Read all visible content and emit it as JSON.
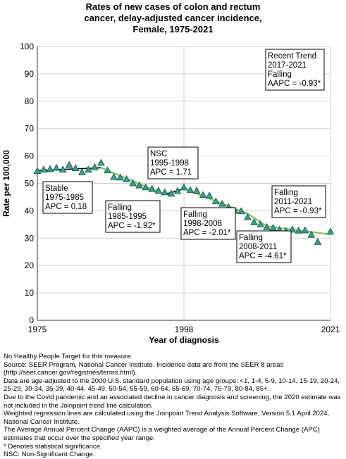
{
  "title_lines": [
    "Rates of new cases of colon and rectum",
    "cancer, delay-adjusted cancer incidence,",
    "Female,  1975-2021"
  ],
  "chart_data": {
    "type": "scatter",
    "xlabel": "Year of diagnosis",
    "ylabel": "Rate per 100,000",
    "xlim": [
      1975,
      2021
    ],
    "ylim": [
      0,
      100
    ],
    "x_ticks": [
      1975,
      1998,
      2021
    ],
    "y_ticks": [
      0,
      10,
      20,
      30,
      40,
      50,
      60,
      70,
      80,
      90,
      100
    ],
    "grid": true,
    "colors": {
      "points": "#3a9e8c",
      "points_edge": "#1a5e52",
      "trend_nsc": "#000000",
      "trend_falling": "#7dc75a"
    },
    "series": [
      {
        "type": "scatter",
        "x": [
          1975,
          1976,
          1977,
          1978,
          1979,
          1980,
          1981,
          1982,
          1983,
          1984,
          1985,
          1986,
          1987,
          1988,
          1989,
          1990,
          1991,
          1992,
          1993,
          1994,
          1995,
          1996,
          1997,
          1998,
          1999,
          2000,
          2001,
          2002,
          2003,
          2004,
          2005,
          2006,
          2007,
          2008,
          2009,
          2010,
          2011,
          2012,
          2013,
          2014,
          2015,
          2016,
          2017,
          2018,
          2019,
          2021
        ],
        "y": [
          54.5,
          55.0,
          55.2,
          55.6,
          55.0,
          56.7,
          55.5,
          54.0,
          55.0,
          55.9,
          57.5,
          54.7,
          52.3,
          52.1,
          51.5,
          50.0,
          49.2,
          48.5,
          47.9,
          47.3,
          46.7,
          46.2,
          47.2,
          48.5,
          47.5,
          47.3,
          45.7,
          45.5,
          43.4,
          42.5,
          41.3,
          40.0,
          39.8,
          37.6,
          35.8,
          35.0,
          34.0,
          33.7,
          33.0,
          32.5,
          33.1,
          32.7,
          32.8,
          31.2,
          28.6,
          32.3
        ]
      },
      {
        "type": "line",
        "segments": [
          {
            "x": [
              1975,
              1985
            ],
            "y": [
              54.7,
              55.7
            ],
            "trend": "nsc"
          },
          {
            "x": [
              1985,
              1995
            ],
            "y": [
              55.7,
              46.0
            ],
            "trend": "falling"
          },
          {
            "x": [
              1995,
              1998
            ],
            "y": [
              46.0,
              48.0
            ],
            "trend": "nsc"
          },
          {
            "x": [
              1998,
              2008
            ],
            "y": [
              48.0,
              39.0
            ],
            "trend": "falling"
          },
          {
            "x": [
              2008,
              2011
            ],
            "y": [
              39.0,
              34.3
            ],
            "trend": "falling"
          },
          {
            "x": [
              2011,
              2021
            ],
            "y": [
              34.3,
              31.4
            ],
            "trend": "falling"
          }
        ]
      }
    ],
    "annotations": [
      {
        "lines": [
          "Recent Trend",
          "2017-2021",
          "Falling",
          "AAPC = -0.93*"
        ]
      },
      {
        "lines": [
          "NSC",
          "1995-1998",
          "APC =  1.71"
        ]
      },
      {
        "lines": [
          "Stable",
          "1975-1985",
          "APC =  0.18"
        ]
      },
      {
        "lines": [
          "Falling",
          "1985-1995",
          "APC = -1.92*"
        ]
      },
      {
        "lines": [
          "Falling",
          "1998-2008",
          "APC = -2.01*"
        ]
      },
      {
        "lines": [
          "Falling",
          "2011-2021",
          "APC = -0.93*"
        ]
      },
      {
        "lines": [
          "Falling",
          "2008-2011",
          "APC = -4.61*"
        ]
      }
    ]
  },
  "notes": [
    "No Healthy People Target for this measure.",
    "Source: SEER Program, National Cancer Institute. Incidence data are from the SEER 8 areas (http://seer.cancer.gov/registries/terms.html).",
    "Data are age-adjusted to the 2000 U.S. standard population using age groups: <1, 1-4, 5-9, 10-14, 15-19, 20-24, 25-29, 30-34, 35-39, 40-44, 45-49, 50-54, 55-59, 60-64, 65-69, 70-74, 75-79, 80-84, 85+.",
    "Due to the Covid pandemic and an associated decline in cancer diagnosis and screening, the 2020 estimate was not included in the Joinpoint trend line calculation.",
    "Weighted regression lines are calculated using the Joinpoint Trend Analysis Software, Version 5.1 April 2024, National Cancer Institute.",
    "The Average Annual Percent Change (AAPC) is a weighted average of the Annual Percent Change (APC) estimates that occur over the specified year range.",
    "* Denotes statistical significance.",
    "NSC: Non-Significant Change."
  ]
}
